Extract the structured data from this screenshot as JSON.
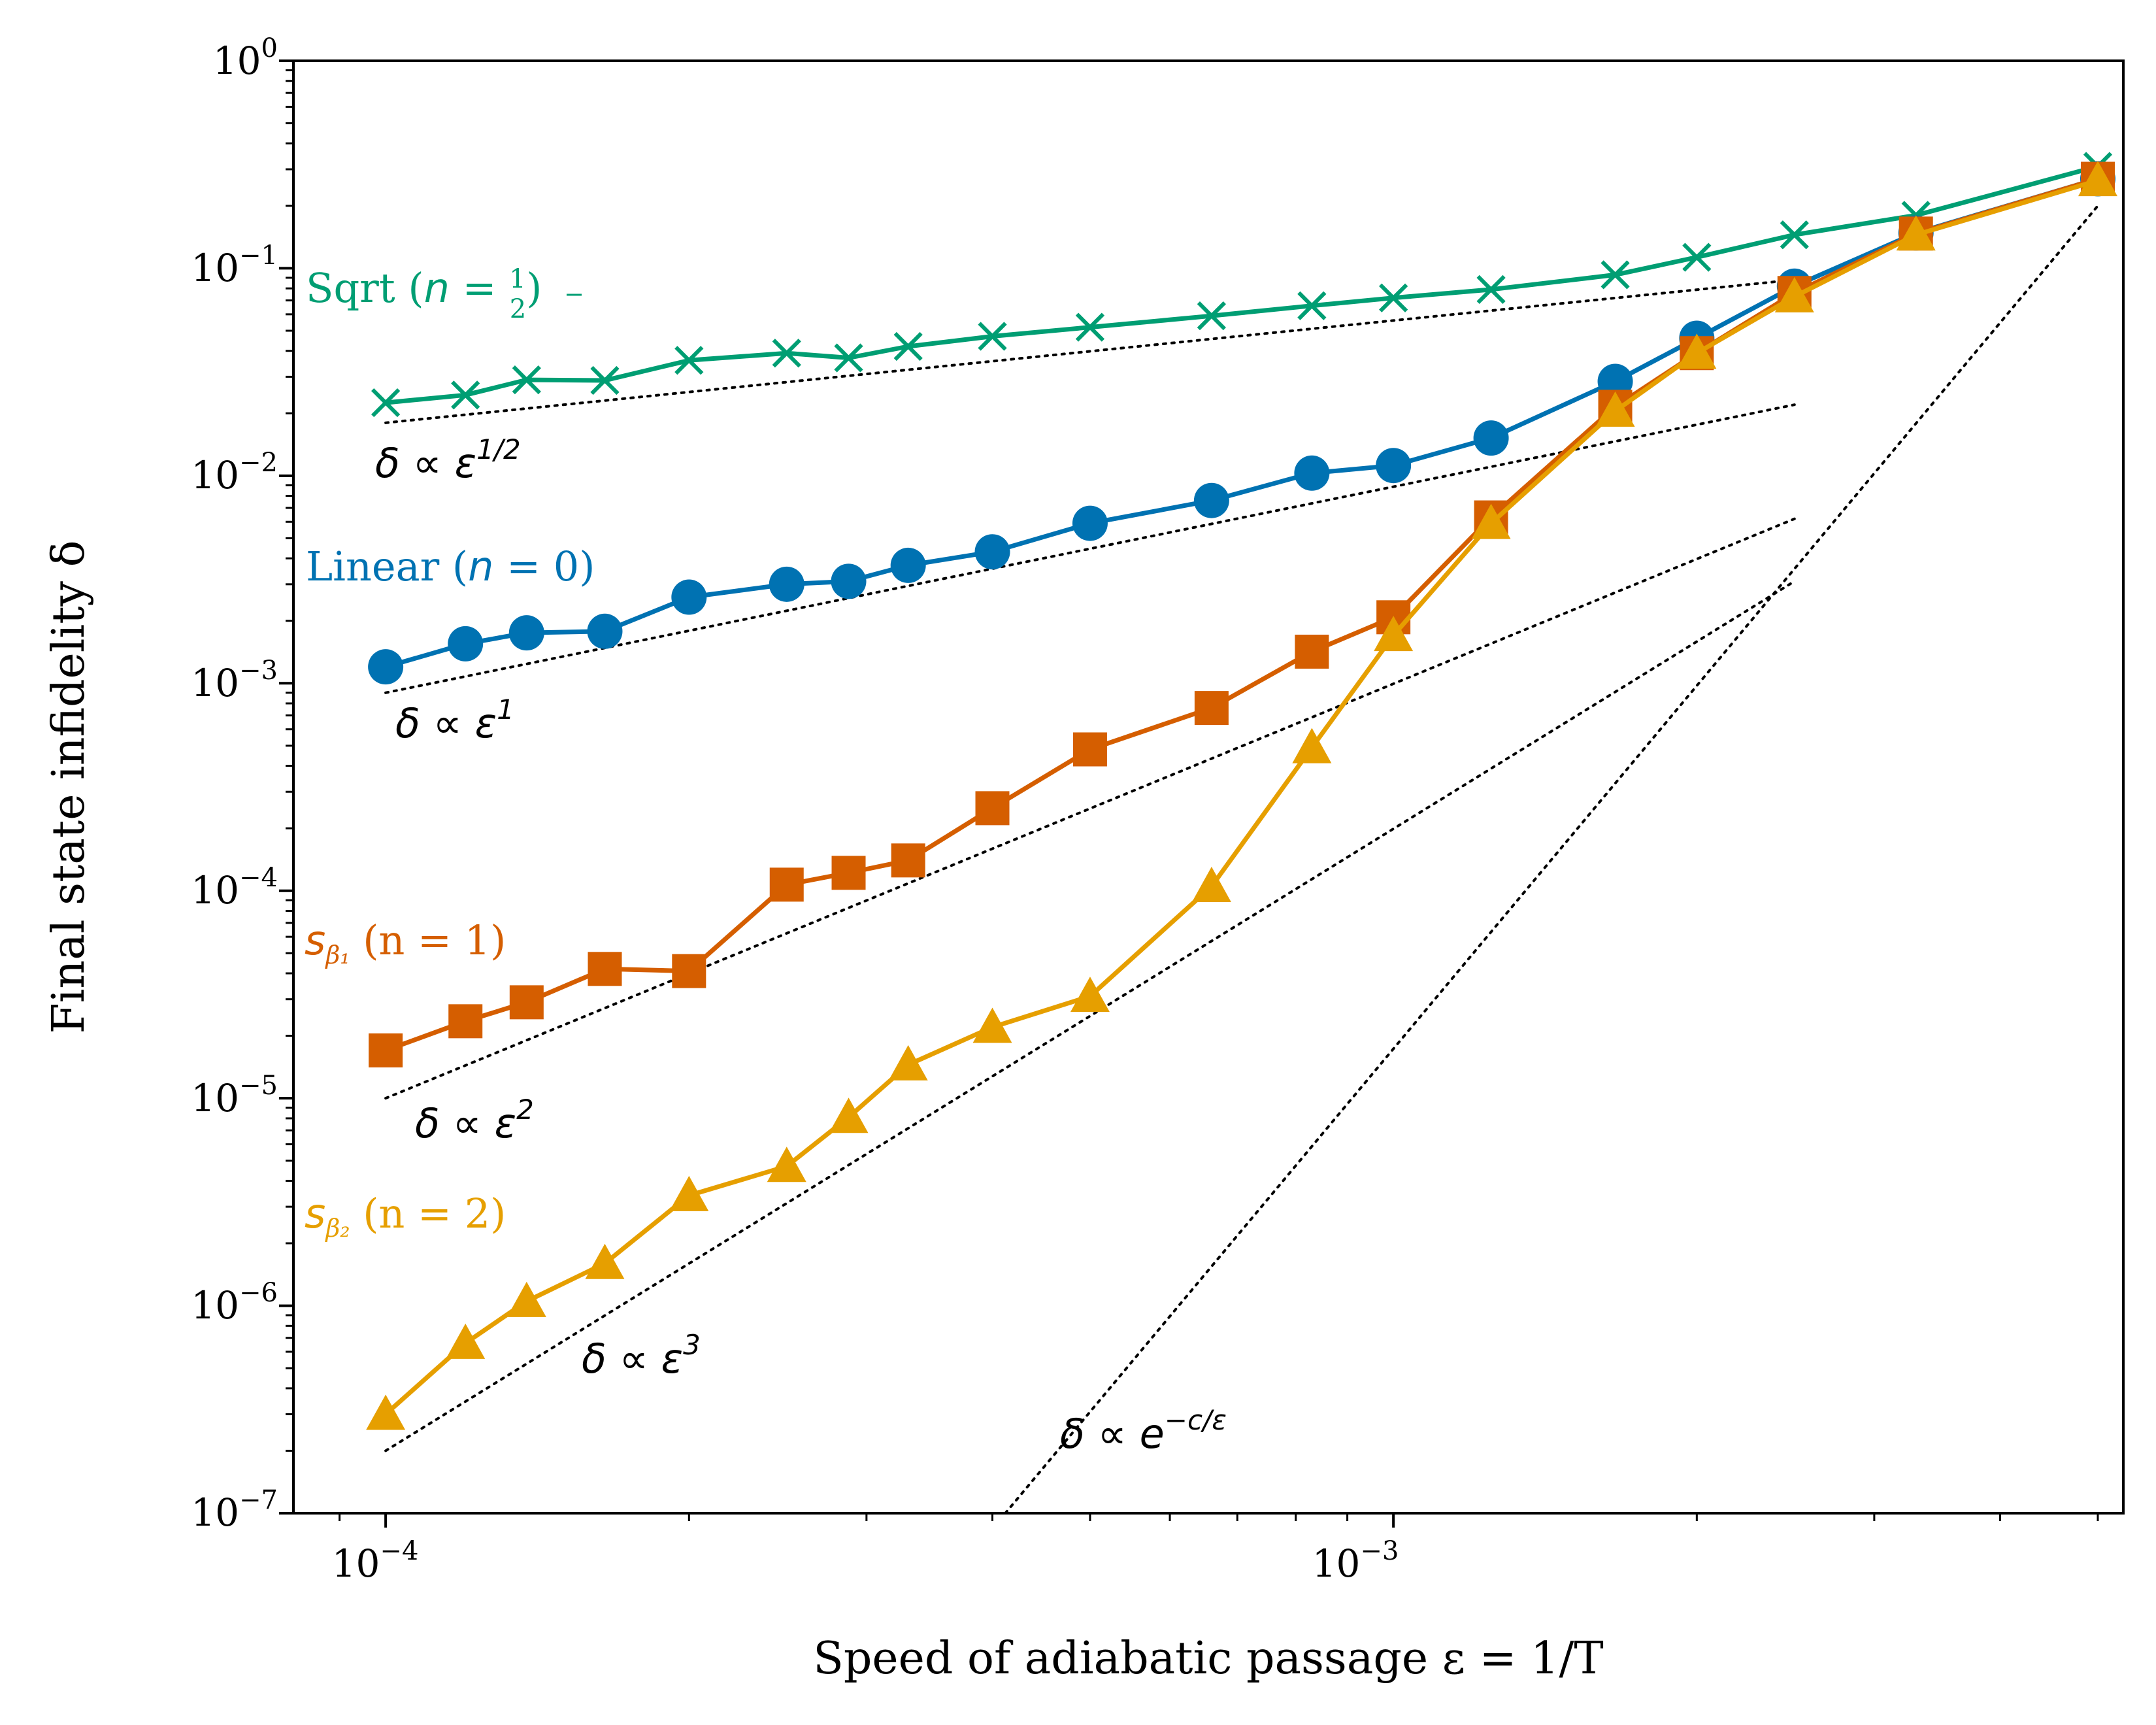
{
  "chart_data": {
    "type": "line",
    "title": "",
    "xlabel": "Speed of adiabatic passage ε = 1/T",
    "ylabel": "Final state infidelity δ",
    "xscale": "log",
    "yscale": "log",
    "xlim": [
      8.1e-05,
      0.0053
    ],
    "ylim": [
      1e-07,
      1
    ],
    "x_ticks": [
      {
        "value": 0.0001,
        "base": "10",
        "exp": "−4"
      },
      {
        "value": 0.001,
        "base": "10",
        "exp": "−3"
      }
    ],
    "y_ticks": [
      {
        "value": 1,
        "base": "10",
        "exp": "0"
      },
      {
        "value": 0.1,
        "base": "10",
        "exp": "−1"
      },
      {
        "value": 0.01,
        "base": "10",
        "exp": "−2"
      },
      {
        "value": 0.001,
        "base": "10",
        "exp": "−3"
      },
      {
        "value": 0.0001,
        "base": "10",
        "exp": "−4"
      },
      {
        "value": 1e-05,
        "base": "10",
        "exp": "−5"
      },
      {
        "value": 1e-06,
        "base": "10",
        "exp": "−6"
      },
      {
        "value": 1e-07,
        "base": "10",
        "exp": "−7"
      }
    ],
    "series": [
      {
        "name": "Sqrt (n = 1/2)",
        "label_main": "Sqrt (",
        "label_var": "n",
        "label_eq": " = ",
        "label_num": "1",
        "label_den": "2",
        "label_close": ")",
        "color": "#009E73",
        "marker": "x",
        "x": [
          0.0001,
          0.00012,
          0.000138,
          0.000165,
          0.0002,
          0.00025,
          0.000288,
          0.00033,
          0.0004,
          0.0005,
          0.00066,
          0.00083,
          0.001,
          0.00125,
          0.00166,
          0.002,
          0.0025,
          0.0033,
          0.005
        ],
        "y": [
          0.0225,
          0.0245,
          0.029,
          0.0288,
          0.036,
          0.039,
          0.037,
          0.042,
          0.047,
          0.052,
          0.059,
          0.066,
          0.072,
          0.079,
          0.093,
          0.113,
          0.145,
          0.18,
          0.31
        ]
      },
      {
        "name": "Linear (n = 0)",
        "label_main": "Linear (",
        "label_var": "n",
        "label_eq": " = 0)",
        "color": "#0072B2",
        "marker": "o",
        "x": [
          0.0001,
          0.00012,
          0.000138,
          0.000165,
          0.0002,
          0.00025,
          0.000288,
          0.00033,
          0.0004,
          0.0005,
          0.00066,
          0.00083,
          0.001,
          0.00125,
          0.00166,
          0.002,
          0.0025,
          0.0033,
          0.005
        ],
        "y": [
          0.0012,
          0.00155,
          0.00175,
          0.00178,
          0.0026,
          0.003,
          0.0031,
          0.0037,
          0.0043,
          0.0059,
          0.0076,
          0.0103,
          0.0112,
          0.0152,
          0.0285,
          0.046,
          0.082,
          0.148,
          0.27
        ]
      },
      {
        "name": "s_β1 (n = 1)",
        "label_main": "s",
        "label_sub": "β₁",
        "label_rest": " (n = 1)",
        "color": "#D55E00",
        "marker": "s",
        "x": [
          0.0001,
          0.00012,
          0.000138,
          0.000165,
          0.0002,
          0.00025,
          0.000288,
          0.00033,
          0.0004,
          0.0005,
          0.00066,
          0.00083,
          0.001,
          0.00125,
          0.00166,
          0.002,
          0.0025,
          0.0033,
          0.005
        ],
        "y": [
          1.7e-05,
          2.35e-05,
          2.9e-05,
          4.2e-05,
          4.1e-05,
          0.000107,
          0.000122,
          0.00014,
          0.00025,
          0.00048,
          0.00076,
          0.00142,
          0.00208,
          0.0063,
          0.0215,
          0.039,
          0.076,
          0.147,
          0.27
        ]
      },
      {
        "name": "s_β2 (n = 2)",
        "label_main": "s",
        "label_sub": "β₂",
        "label_rest": " (n = 2)",
        "color": "#E69F00",
        "marker": "^",
        "x": [
          0.0001,
          0.00012,
          0.000138,
          0.000165,
          0.0002,
          0.00025,
          0.000288,
          0.00033,
          0.0004,
          0.0005,
          0.00066,
          0.00083,
          0.001,
          0.00125,
          0.00166,
          0.002,
          0.0025,
          0.0033,
          0.005
        ],
        "y": [
          3e-07,
          6.6e-07,
          1.05e-06,
          1.6e-06,
          3.4e-06,
          4.7e-06,
          8.1e-06,
          1.45e-05,
          2.2e-05,
          3.1e-05,
          0.000105,
          0.00049,
          0.0017,
          0.0059,
          0.0205,
          0.039,
          0.073,
          0.145,
          0.265
        ]
      }
    ],
    "trend_lines": [
      {
        "name": "delta-eps-half",
        "label_base": "δ ∝ ε",
        "label_exp": "1/2",
        "x": [
          0.0001,
          0.0025
        ],
        "y": [
          0.018,
          0.088
        ]
      },
      {
        "name": "delta-eps-1",
        "label_base": "δ ∝ ε",
        "label_exp": "1",
        "x": [
          0.0001,
          0.0025
        ],
        "y": [
          0.0009,
          0.022
        ]
      },
      {
        "name": "delta-eps-2",
        "label_base": "δ ∝ ε",
        "label_exp": "2",
        "x": [
          0.0001,
          0.0025
        ],
        "y": [
          1e-05,
          0.0062
        ]
      },
      {
        "name": "delta-eps-3",
        "label_base": "δ ∝ ε",
        "label_exp": "3",
        "x": [
          0.0001,
          0.0025
        ],
        "y": [
          2e-07,
          0.0031
        ]
      },
      {
        "name": "delta-exp",
        "label_base": "δ ∝ e",
        "label_exp": "−c/ε",
        "x": [
          0.000412,
          0.005
        ],
        "y": [
          1e-07,
          0.2
        ]
      }
    ]
  }
}
